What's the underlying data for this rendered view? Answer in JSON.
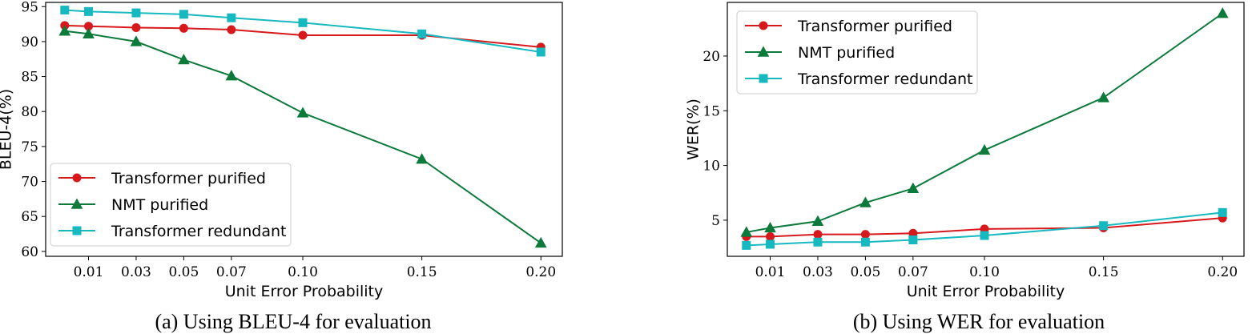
{
  "chart_data": [
    {
      "type": "line",
      "caption": "(a) Using BLEU-4 for evaluation",
      "xlabel": "Unit Error Probability",
      "ylabel": "BLEU-4(%)",
      "x": [
        0.0,
        0.01,
        0.03,
        0.05,
        0.07,
        0.1,
        0.15,
        0.2
      ],
      "xticks": [
        0.01,
        0.03,
        0.05,
        0.07,
        0.1,
        0.15,
        0.2
      ],
      "xtick_labels": [
        "0.01",
        "0.03",
        "0.05",
        "0.07",
        "0.10",
        "0.15",
        "0.20"
      ],
      "xlim": [
        -0.008,
        0.209
      ],
      "ylim": [
        59.3,
        95.6
      ],
      "yticks": [
        60,
        65,
        70,
        75,
        80,
        85,
        90,
        95
      ],
      "ytick_labels": [
        "60",
        "65",
        "70",
        "75",
        "80",
        "85",
        "90",
        "95"
      ],
      "legend_position": "lower-left",
      "series": [
        {
          "name": "Transformer purified",
          "color": "#d7191c",
          "marker": "circle",
          "values": [
            92.3,
            92.2,
            92.0,
            91.9,
            91.7,
            90.9,
            90.9,
            89.2
          ]
        },
        {
          "name": "NMT purified",
          "color": "#0b7a3a",
          "marker": "triangle",
          "values": [
            91.5,
            91.1,
            90.0,
            87.4,
            85.1,
            79.8,
            73.2,
            61.2
          ]
        },
        {
          "name": "Transformer redundant",
          "color": "#17b9c1",
          "marker": "square",
          "values": [
            94.5,
            94.3,
            94.1,
            93.9,
            93.4,
            92.7,
            91.1,
            88.5
          ]
        }
      ]
    },
    {
      "type": "line",
      "caption": "(b) Using WER for evaluation",
      "xlabel": "Unit Error Probability",
      "ylabel": "WER(%)",
      "x": [
        0.0,
        0.01,
        0.03,
        0.05,
        0.07,
        0.1,
        0.15,
        0.2
      ],
      "xticks": [
        0.01,
        0.03,
        0.05,
        0.07,
        0.1,
        0.15,
        0.2
      ],
      "xtick_labels": [
        "0.01",
        "0.03",
        "0.05",
        "0.07",
        "0.10",
        "0.15",
        "0.20"
      ],
      "xlim": [
        -0.008,
        0.209
      ],
      "ylim": [
        1.7,
        24.9
      ],
      "yticks": [
        5,
        10,
        15,
        20
      ],
      "ytick_labels": [
        "5",
        "10",
        "15",
        "20"
      ],
      "legend_position": "top-left",
      "series": [
        {
          "name": "Transformer purified",
          "color": "#d7191c",
          "marker": "circle",
          "values": [
            3.5,
            3.5,
            3.7,
            3.7,
            3.8,
            4.2,
            4.3,
            5.2
          ]
        },
        {
          "name": "NMT purified",
          "color": "#0b7a3a",
          "marker": "triangle",
          "values": [
            3.9,
            4.3,
            4.9,
            6.6,
            7.9,
            11.4,
            16.2,
            23.9
          ]
        },
        {
          "name": "Transformer redundant",
          "color": "#17b9c1",
          "marker": "square",
          "values": [
            2.7,
            2.8,
            3.0,
            3.0,
            3.2,
            3.6,
            4.5,
            5.7
          ]
        }
      ]
    }
  ]
}
